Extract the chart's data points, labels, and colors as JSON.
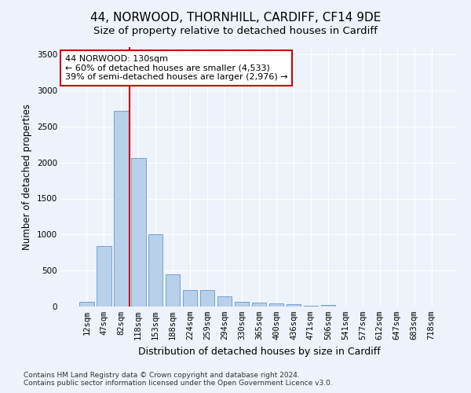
{
  "title1": "44, NORWOOD, THORNHILL, CARDIFF, CF14 9DE",
  "title2": "Size of property relative to detached houses in Cardiff",
  "xlabel": "Distribution of detached houses by size in Cardiff",
  "ylabel": "Number of detached properties",
  "categories": [
    "12sqm",
    "47sqm",
    "82sqm",
    "118sqm",
    "153sqm",
    "188sqm",
    "224sqm",
    "259sqm",
    "294sqm",
    "330sqm",
    "365sqm",
    "400sqm",
    "436sqm",
    "471sqm",
    "506sqm",
    "541sqm",
    "577sqm",
    "612sqm",
    "647sqm",
    "683sqm",
    "718sqm"
  ],
  "values": [
    65,
    840,
    2720,
    2060,
    1000,
    450,
    230,
    225,
    145,
    70,
    60,
    40,
    35,
    15,
    25,
    5,
    0,
    0,
    0,
    0,
    0
  ],
  "bar_color": "#b8d0ea",
  "bar_edgecolor": "#6699cc",
  "vline_x": 2.5,
  "vline_color": "#cc0000",
  "annotation_text": "44 NORWOOD: 130sqm\n← 60% of detached houses are smaller (4,533)\n39% of semi-detached houses are larger (2,976) →",
  "annotation_box_edgecolor": "#cc0000",
  "annotation_box_facecolor": "#ffffff",
  "ylim": [
    0,
    3600
  ],
  "yticks": [
    0,
    500,
    1000,
    1500,
    2000,
    2500,
    3000,
    3500
  ],
  "background_color": "#eef2fa",
  "footer1": "Contains HM Land Registry data © Crown copyright and database right 2024.",
  "footer2": "Contains public sector information licensed under the Open Government Licence v3.0.",
  "title1_fontsize": 11,
  "title2_fontsize": 9.5,
  "xlabel_fontsize": 9,
  "ylabel_fontsize": 8.5,
  "tick_fontsize": 7.5,
  "footer_fontsize": 6.5,
  "annot_fontsize": 8
}
